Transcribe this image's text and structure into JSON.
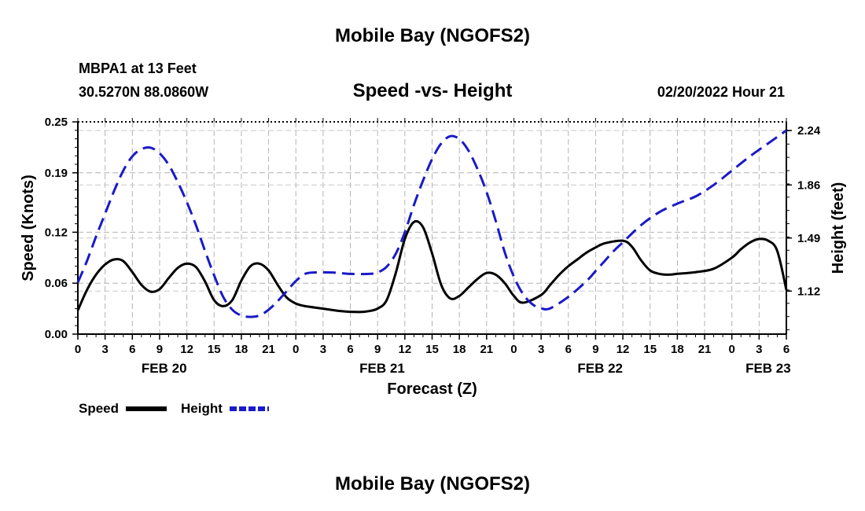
{
  "header": {
    "title": "Mobile Bay (NGOFS2)",
    "station": "MBPA1 at 13 Feet",
    "coords": "30.5270N  88.0860W",
    "datetime": "02/20/2022 Hour 21",
    "bottom_title": "Mobile Bay (NGOFS2)"
  },
  "chart_data": {
    "type": "line",
    "title": "Speed -vs- Height",
    "xlabel": "Forecast (Z)",
    "ylabel": "Speed (Knots)",
    "y2label": "Height (feet)",
    "x_unit": "hours since FEB 20 00Z",
    "xlim": [
      0,
      78
    ],
    "ylim": [
      0,
      0.25
    ],
    "y2lim": [
      0.82,
      2.3
    ],
    "x_ticks": [
      0,
      3,
      6,
      9,
      12,
      15,
      18,
      21,
      24,
      27,
      30,
      33,
      36,
      39,
      42,
      45,
      48,
      51,
      54,
      57,
      60,
      63,
      66,
      69,
      72,
      75,
      78
    ],
    "x_tick_labels": [
      "0",
      "3",
      "6",
      "9",
      "12",
      "15",
      "18",
      "21",
      "0",
      "3",
      "6",
      "9",
      "12",
      "15",
      "18",
      "21",
      "0",
      "3",
      "6",
      "9",
      "12",
      "15",
      "18",
      "21",
      "0",
      "3",
      "6"
    ],
    "day_labels": [
      {
        "x": 9.5,
        "label": "FEB 20"
      },
      {
        "x": 33.5,
        "label": "FEB 21"
      },
      {
        "x": 57.5,
        "label": "FEB 22"
      },
      {
        "x": 76,
        "label": "FEB 23"
      }
    ],
    "y_ticks": [
      0.0,
      0.06,
      0.12,
      0.19,
      0.25
    ],
    "y_tick_labels": [
      "0.00",
      "0.06",
      "0.12",
      "0.19",
      "0.25"
    ],
    "y2_ticks": [
      1.12,
      1.49,
      1.86,
      2.24
    ],
    "y2_tick_labels": [
      "1.12",
      "1.49",
      "1.86",
      "2.24"
    ],
    "grid": true,
    "series": [
      {
        "name": "Speed",
        "axis": "left",
        "color": "#000000",
        "dash": "solid",
        "x": [
          0,
          1,
          2,
          3,
          4,
          5,
          6,
          7,
          8,
          9,
          10,
          11,
          12,
          13,
          14,
          15,
          16,
          17,
          18,
          19,
          20,
          21,
          22,
          23,
          24,
          25,
          27,
          29,
          31,
          32,
          33,
          34,
          35,
          36,
          37,
          38,
          39,
          40,
          41,
          42,
          43,
          44,
          45,
          46,
          47,
          48,
          49,
          51,
          52,
          53,
          54,
          55,
          56,
          57,
          58,
          60,
          61,
          62,
          63,
          64,
          65,
          66,
          68,
          70,
          72,
          73,
          74,
          75,
          76,
          77,
          78
        ],
        "y": [
          0.028,
          0.052,
          0.07,
          0.082,
          0.088,
          0.086,
          0.073,
          0.058,
          0.05,
          0.053,
          0.066,
          0.078,
          0.083,
          0.079,
          0.062,
          0.04,
          0.033,
          0.04,
          0.063,
          0.08,
          0.083,
          0.075,
          0.058,
          0.043,
          0.036,
          0.033,
          0.03,
          0.027,
          0.026,
          0.027,
          0.03,
          0.04,
          0.072,
          0.112,
          0.132,
          0.126,
          0.095,
          0.058,
          0.042,
          0.045,
          0.055,
          0.065,
          0.072,
          0.07,
          0.06,
          0.045,
          0.037,
          0.046,
          0.058,
          0.07,
          0.08,
          0.088,
          0.096,
          0.102,
          0.107,
          0.11,
          0.103,
          0.087,
          0.075,
          0.071,
          0.07,
          0.071,
          0.073,
          0.077,
          0.09,
          0.1,
          0.108,
          0.112,
          0.11,
          0.098,
          0.052
        ]
      },
      {
        "name": "Height",
        "axis": "right",
        "color": "#1a1ac8",
        "dash": "dashed",
        "x": [
          0,
          1,
          2,
          3,
          4,
          5,
          6,
          7,
          8,
          9,
          10,
          11,
          12,
          13,
          14,
          15,
          16,
          17,
          18,
          19,
          20,
          21,
          22,
          23,
          24,
          25,
          26,
          28,
          30,
          32,
          33,
          34,
          35,
          36,
          37,
          38,
          39,
          40,
          41,
          42,
          43,
          44,
          45,
          46,
          47,
          48,
          49,
          50,
          51,
          52,
          54,
          56,
          57,
          58,
          59,
          60,
          62,
          64,
          66,
          68,
          70,
          72,
          74,
          76,
          78
        ],
        "y": [
          1.18,
          1.33,
          1.5,
          1.66,
          1.82,
          1.96,
          2.06,
          2.11,
          2.12,
          2.08,
          2.0,
          1.88,
          1.74,
          1.58,
          1.4,
          1.23,
          1.08,
          0.99,
          0.95,
          0.94,
          0.95,
          0.99,
          1.05,
          1.12,
          1.19,
          1.24,
          1.25,
          1.25,
          1.24,
          1.24,
          1.25,
          1.29,
          1.38,
          1.53,
          1.72,
          1.89,
          2.04,
          2.15,
          2.2,
          2.18,
          2.1,
          1.97,
          1.81,
          1.61,
          1.39,
          1.22,
          1.1,
          1.03,
          1.0,
          1.0,
          1.08,
          1.19,
          1.26,
          1.33,
          1.4,
          1.46,
          1.58,
          1.67,
          1.73,
          1.78,
          1.86,
          1.96,
          2.06,
          2.15,
          2.24
        ]
      }
    ],
    "legend": [
      {
        "label": "Speed",
        "color": "#000000",
        "dash": "solid"
      },
      {
        "label": "Height",
        "color": "#1a1ac8",
        "dash": "dashed"
      }
    ],
    "legend_position": "bottom-left"
  }
}
